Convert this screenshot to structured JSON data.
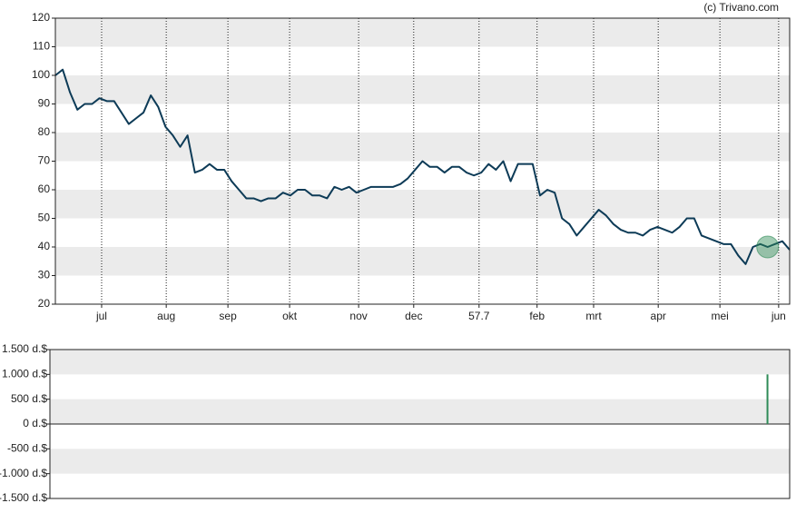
{
  "chart_data": [
    {
      "type": "line",
      "source": "(c) Trivano.com",
      "series": [
        {
          "color": "#0d3b57",
          "values": [
            100,
            102,
            94,
            88,
            90,
            90,
            92,
            91,
            91,
            87,
            83,
            85,
            87,
            93,
            89,
            82,
            79,
            75,
            79,
            66,
            67,
            69,
            67,
            67,
            63,
            60,
            57,
            57,
            56,
            57,
            57,
            59,
            58,
            60,
            60,
            58,
            58,
            57,
            61,
            60,
            61,
            59,
            60,
            61,
            61,
            61,
            61,
            62,
            64,
            67,
            70,
            68,
            68,
            66,
            68,
            68,
            66,
            65,
            66,
            69,
            67,
            70,
            63,
            69,
            69,
            69,
            58,
            60,
            59,
            50,
            48,
            44,
            47,
            50,
            53,
            51,
            48,
            46,
            45,
            45,
            44,
            46,
            47,
            46,
            45,
            47,
            50,
            50,
            44,
            43,
            42,
            41,
            41,
            37,
            34,
            40,
            41,
            40,
            41,
            42,
            39
          ]
        }
      ],
      "xlim": [
        0,
        100
      ],
      "xticks": [
        {
          "value": 6.3,
          "label": "jul"
        },
        {
          "value": 15.1,
          "label": "aug"
        },
        {
          "value": 23.5,
          "label": "sep"
        },
        {
          "value": 31.9,
          "label": "okt"
        },
        {
          "value": 41.3,
          "label": "nov"
        },
        {
          "value": 48.8,
          "label": "dec"
        },
        57.7,
        {
          "value": 65.6,
          "label": "feb"
        },
        {
          "value": 73.3,
          "label": "mrt"
        },
        {
          "value": 82.1,
          "label": "apr"
        },
        {
          "value": 90.5,
          "label": "mei"
        },
        {
          "value": 98.5,
          "label": "jun"
        }
      ],
      "ylim": [
        20,
        120
      ],
      "yticks": [
        20,
        30,
        40,
        50,
        60,
        70,
        80,
        90,
        100,
        110,
        120
      ],
      "grid": true
    },
    {
      "type": "bar",
      "x": [
        97
      ],
      "values": [
        1000
      ],
      "color": "#2e8b57",
      "xlim": [
        0,
        100
      ],
      "ylim": [
        -1500,
        1500
      ],
      "yticks": [
        {
          "value": -1500,
          "label": "-1.500 d.$"
        },
        {
          "value": -1000,
          "label": "-1.000 d.$"
        },
        {
          "value": -500,
          "label": "-500 d.$"
        },
        {
          "value": 0,
          "label": "0 d.$"
        },
        {
          "value": 500,
          "label": "500 d.$"
        },
        {
          "value": 1000,
          "label": "1.000 d.$"
        },
        {
          "value": 1500,
          "label": "1.500 d.$"
        }
      ]
    }
  ]
}
